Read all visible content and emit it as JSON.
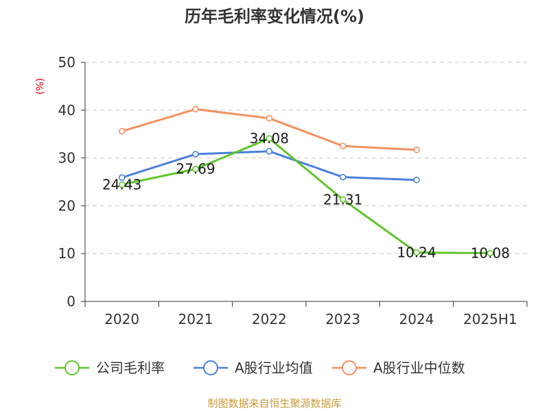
{
  "chart_data": {
    "type": "line",
    "title": "历年毛利率变化情况(%)",
    "ylabel": "(%)",
    "ylim": [
      0,
      50
    ],
    "yticks": [
      0,
      10,
      20,
      30,
      40,
      50
    ],
    "grid": true,
    "legend_position": "bottom",
    "categories": [
      "2020",
      "2021",
      "2022",
      "2023",
      "2024",
      "2025H1"
    ],
    "series": [
      {
        "name": "公司毛利率",
        "color": "#5ec62b",
        "values": [
          24.43,
          27.69,
          34.08,
          21.31,
          10.24,
          10.08
        ],
        "labels": [
          "24.43",
          "27.69",
          "34.08",
          "21.31",
          "10.24",
          "10.08"
        ]
      },
      {
        "name": "A股行业均值",
        "color": "#4a7fdc",
        "values": [
          25.9,
          30.8,
          31.4,
          26.0,
          25.4,
          null
        ]
      },
      {
        "name": "A股行业中位数",
        "color": "#f58f5e",
        "values": [
          35.6,
          40.2,
          38.3,
          32.5,
          31.7,
          null
        ]
      }
    ]
  },
  "source": "制图数据来自恒生聚源数据库"
}
